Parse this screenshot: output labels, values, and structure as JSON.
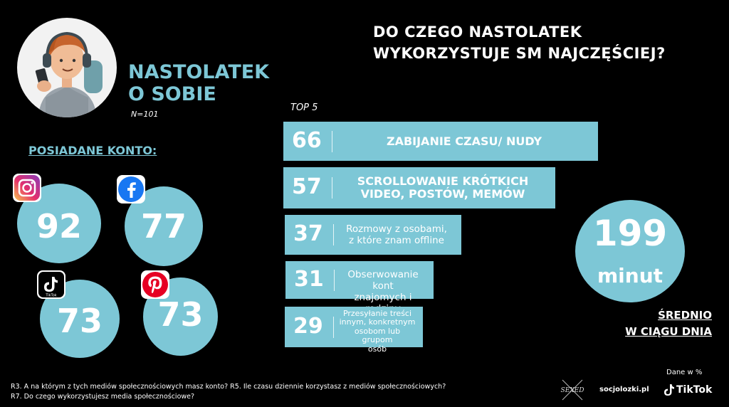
{
  "header": {
    "left_title_line1": "NASTOLATEK",
    "left_title_line2": "O SOBIE",
    "sample_size": "N=101",
    "main_title_line1": "DO CZEGO NASTOLATEK",
    "main_title_line2": "WYKORZYSTUJE SM NAJCZĘŚCIEJ?"
  },
  "accounts": {
    "heading": "POSIADANE KONTO:",
    "items": [
      {
        "platform": "Instagram",
        "icon": "instagram-icon",
        "value": "92"
      },
      {
        "platform": "Facebook",
        "icon": "facebook-icon",
        "value": "77"
      },
      {
        "platform": "TikTok",
        "icon": "tiktok-icon",
        "value": "73",
        "icon_caption": "TikTok"
      },
      {
        "platform": "Pinterest",
        "icon": "pinterest-icon",
        "value": "73"
      }
    ]
  },
  "chart_data": {
    "type": "bar",
    "orientation": "horizontal",
    "title": "DO CZEGO NASTOLATEK WYKORZYSTUJE SM NAJCZĘŚCIEJ?",
    "subtitle": "TOP 5",
    "categories": [
      "ZABIJANIE CZASU/ NUDY",
      "SCROLLOWANIE KRÓTKICH VIDEO, POSTÓW, MEMÓW",
      "Rozmowy z osobami, z które znam offline",
      "Obserwowanie kont znajomych i rodziny",
      "Przesyłanie treści innym, konkretnym osobom lub grupom osób"
    ],
    "label_lines": [
      [
        "ZABIJANIE CZASU/ NUDY"
      ],
      [
        "SCROLLOWANIE KRÓTKICH",
        "VIDEO, POSTÓW, MEMÓW"
      ],
      [
        "Rozmowy z osobami,",
        "z które znam offline"
      ],
      [
        "Obserwowanie kont",
        "znajomych i rodziny"
      ],
      [
        "Przesyłanie treści",
        "innym, konkretnym",
        "osobom lub grupom",
        "osób"
      ]
    ],
    "values": [
      66,
      57,
      37,
      31,
      29
    ],
    "unit": "%",
    "xlim": [
      0,
      66
    ]
  },
  "average": {
    "value": "199",
    "unit": "minut",
    "caption_line1": "ŚREDNIO",
    "caption_line2": "W CIĄGU DNIA"
  },
  "footer": {
    "data_note": "Dane w %",
    "question_line1": "R3. A na którym z tych mediów społecznościowych masz konto? R5. Ile czasu dziennie korzystasz z mediów społecznościowych?",
    "question_line2": "R7. Do czego wykorzystujesz media społecznościowe?",
    "brands": [
      "SEXED",
      "socjolozki.pl",
      "TikTok"
    ]
  },
  "colors": {
    "accent": "#7dc7d6",
    "background": "#000000",
    "text": "#ffffff"
  }
}
